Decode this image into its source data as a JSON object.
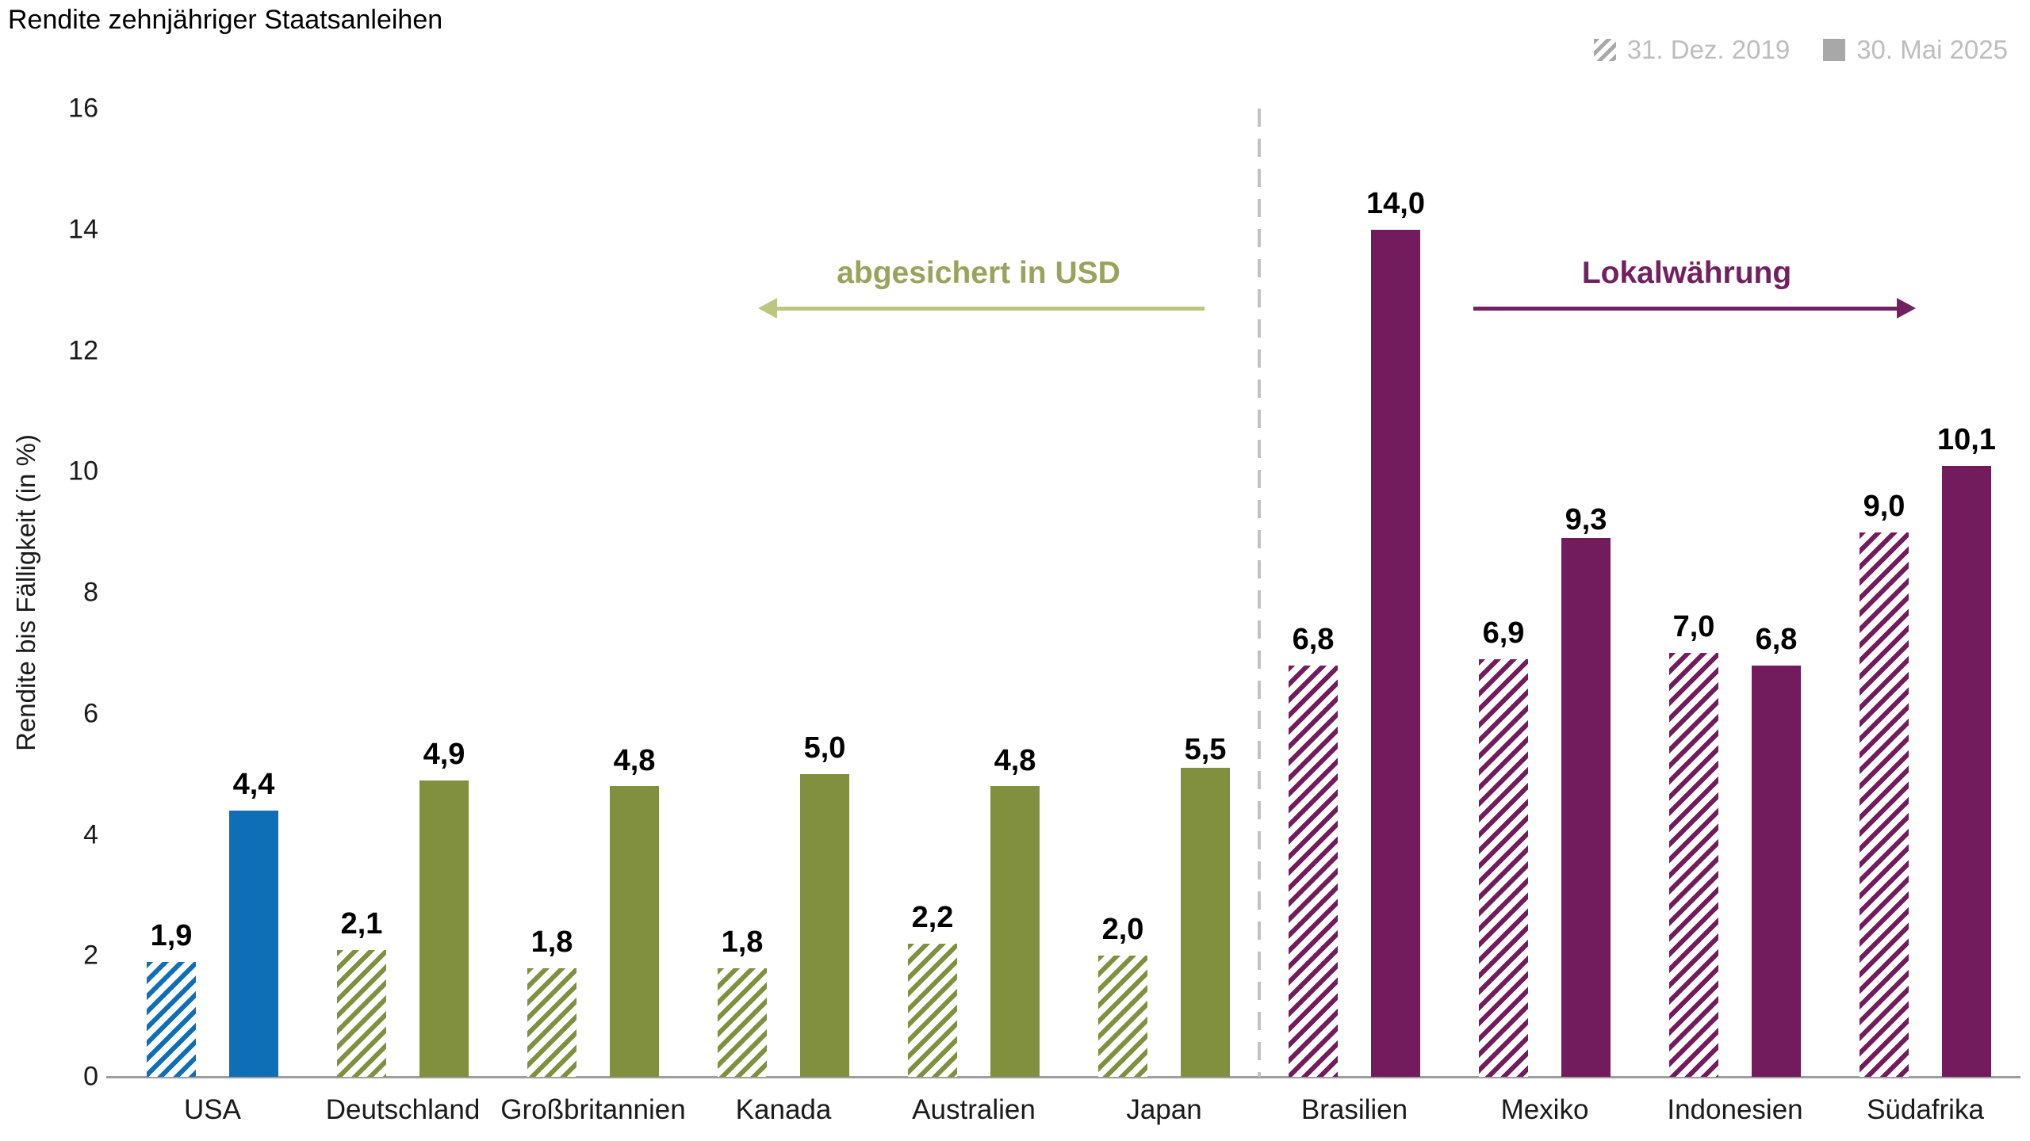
{
  "chart_data": {
    "type": "bar",
    "title": "Rendite zehnjähriger Staatsanleihen",
    "ylabel": "Rendite bis Fälligkeit (in %)",
    "ylim": [
      0,
      16
    ],
    "ytick_step": 2,
    "grid": false,
    "legend_position": "top-right",
    "decimal_separator": ",",
    "categories": [
      "USA",
      "Deutschland",
      "Großbritannien",
      "Kanada",
      "Australien",
      "Japan",
      "Brasilien",
      "Mexiko",
      "Indonesien",
      "Südafrika"
    ],
    "category_colors": [
      "#0e6fb7",
      "#80903f",
      "#80903f",
      "#80903f",
      "#80903f",
      "#80903f",
      "#721c5d",
      "#721c5d",
      "#721c5d",
      "#721c5d"
    ],
    "series": [
      {
        "name": "31. Dez. 2019",
        "style": "hatched",
        "values": [
          1.9,
          2.1,
          1.8,
          1.8,
          2.2,
          2.0,
          6.8,
          6.9,
          7.0,
          9.0
        ]
      },
      {
        "name": "30. Mai 2025",
        "style": "solid",
        "values": [
          4.4,
          4.9,
          4.8,
          5.0,
          4.8,
          5.5,
          14.0,
          9.3,
          6.8,
          10.1
        ]
      }
    ],
    "divider_after_category": "Japan",
    "annotations": [
      {
        "text": "abgesichert in USD",
        "color": "#9aa35c",
        "arrow_direction": "left",
        "arrow_color": "#bdc67e"
      },
      {
        "text": "Lokalwährung",
        "color": "#722060",
        "arrow_direction": "right",
        "arrow_color": "#722060"
      }
    ],
    "inside_labels": [
      {
        "category": "Japan",
        "series": "30. Mai 2025"
      },
      {
        "category": "Mexiko",
        "series": "30. Mai 2025"
      }
    ],
    "styles": {
      "legend_text_color": "#bdbdbd",
      "legend_swatch_color": "#a8a8a8",
      "axis_text_color": "#1a1a1a",
      "value_label_color": "#000000",
      "divider_color": "#c2c2c2",
      "baseline_color": "#9e9e9e"
    }
  }
}
